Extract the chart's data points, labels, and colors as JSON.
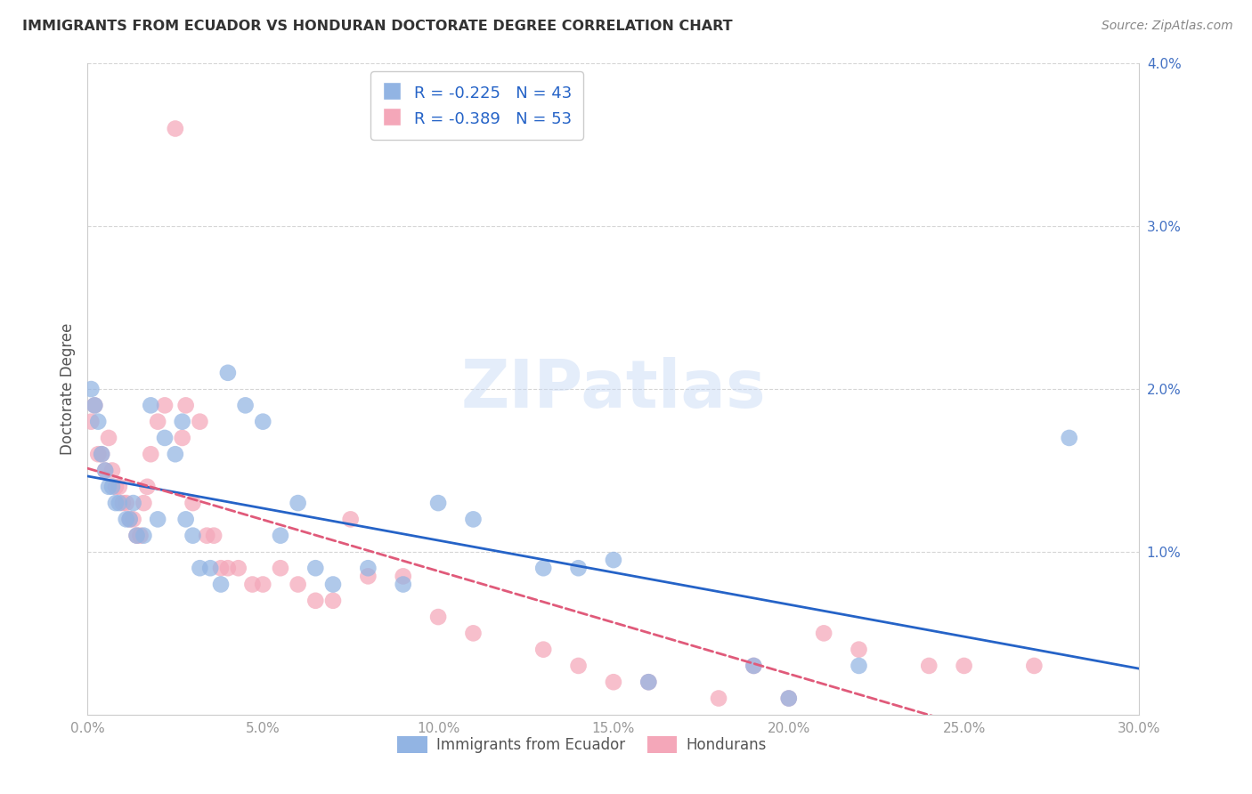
{
  "title": "IMMIGRANTS FROM ECUADOR VS HONDURAN DOCTORATE DEGREE CORRELATION CHART",
  "source": "Source: ZipAtlas.com",
  "ylabel": "Doctorate Degree",
  "xlim": [
    0.0,
    0.3
  ],
  "ylim": [
    0.0,
    0.04
  ],
  "x_ticks": [
    0.0,
    0.05,
    0.1,
    0.15,
    0.2,
    0.25,
    0.3
  ],
  "x_tick_labels": [
    "0.0%",
    "5.0%",
    "10.0%",
    "15.0%",
    "20.0%",
    "25.0%",
    "30.0%"
  ],
  "y_ticks": [
    0.01,
    0.02,
    0.03,
    0.04
  ],
  "y_tick_labels": [
    "1.0%",
    "2.0%",
    "3.0%",
    "4.0%"
  ],
  "legend_r_ecuador": "R = -0.225",
  "legend_n_ecuador": "N = 43",
  "legend_r_honduran": "R = -0.389",
  "legend_n_honduran": "N = 53",
  "ecuador_color": "#92b4e3",
  "honduran_color": "#f4a7b9",
  "ecuador_line_color": "#2563c7",
  "honduran_line_color": "#e05a7a",
  "background_color": "#ffffff",
  "watermark": "ZIPatlas",
  "ecuador_x": [
    0.001,
    0.002,
    0.003,
    0.004,
    0.005,
    0.006,
    0.007,
    0.008,
    0.009,
    0.011,
    0.012,
    0.013,
    0.014,
    0.016,
    0.018,
    0.02,
    0.022,
    0.025,
    0.027,
    0.028,
    0.03,
    0.032,
    0.035,
    0.038,
    0.04,
    0.045,
    0.05,
    0.055,
    0.06,
    0.065,
    0.07,
    0.08,
    0.09,
    0.1,
    0.11,
    0.13,
    0.14,
    0.15,
    0.16,
    0.19,
    0.2,
    0.22,
    0.28
  ],
  "ecuador_y": [
    0.02,
    0.019,
    0.018,
    0.016,
    0.015,
    0.014,
    0.014,
    0.013,
    0.013,
    0.012,
    0.012,
    0.013,
    0.011,
    0.011,
    0.019,
    0.012,
    0.017,
    0.016,
    0.018,
    0.012,
    0.011,
    0.009,
    0.009,
    0.008,
    0.021,
    0.019,
    0.018,
    0.011,
    0.013,
    0.009,
    0.008,
    0.009,
    0.008,
    0.013,
    0.012,
    0.009,
    0.009,
    0.0095,
    0.002,
    0.003,
    0.001,
    0.003,
    0.017
  ],
  "honduran_x": [
    0.001,
    0.002,
    0.003,
    0.004,
    0.005,
    0.006,
    0.007,
    0.008,
    0.009,
    0.01,
    0.011,
    0.012,
    0.013,
    0.014,
    0.015,
    0.016,
    0.017,
    0.018,
    0.02,
    0.022,
    0.025,
    0.027,
    0.028,
    0.03,
    0.032,
    0.034,
    0.036,
    0.038,
    0.04,
    0.043,
    0.047,
    0.05,
    0.055,
    0.06,
    0.065,
    0.07,
    0.075,
    0.08,
    0.09,
    0.1,
    0.11,
    0.13,
    0.14,
    0.15,
    0.16,
    0.18,
    0.19,
    0.2,
    0.21,
    0.22,
    0.24,
    0.25,
    0.27
  ],
  "honduran_y": [
    0.018,
    0.019,
    0.016,
    0.016,
    0.015,
    0.017,
    0.015,
    0.014,
    0.014,
    0.013,
    0.013,
    0.012,
    0.012,
    0.011,
    0.011,
    0.013,
    0.014,
    0.016,
    0.018,
    0.019,
    0.036,
    0.017,
    0.019,
    0.013,
    0.018,
    0.011,
    0.011,
    0.009,
    0.009,
    0.009,
    0.008,
    0.008,
    0.009,
    0.008,
    0.007,
    0.007,
    0.012,
    0.0085,
    0.0085,
    0.006,
    0.005,
    0.004,
    0.003,
    0.002,
    0.002,
    0.001,
    0.003,
    0.001,
    0.005,
    0.004,
    0.003,
    0.003,
    0.003
  ],
  "grid_color": "#cccccc",
  "tick_color_x": "#999999",
  "tick_color_y": "#4472c4",
  "spine_color": "#cccccc"
}
